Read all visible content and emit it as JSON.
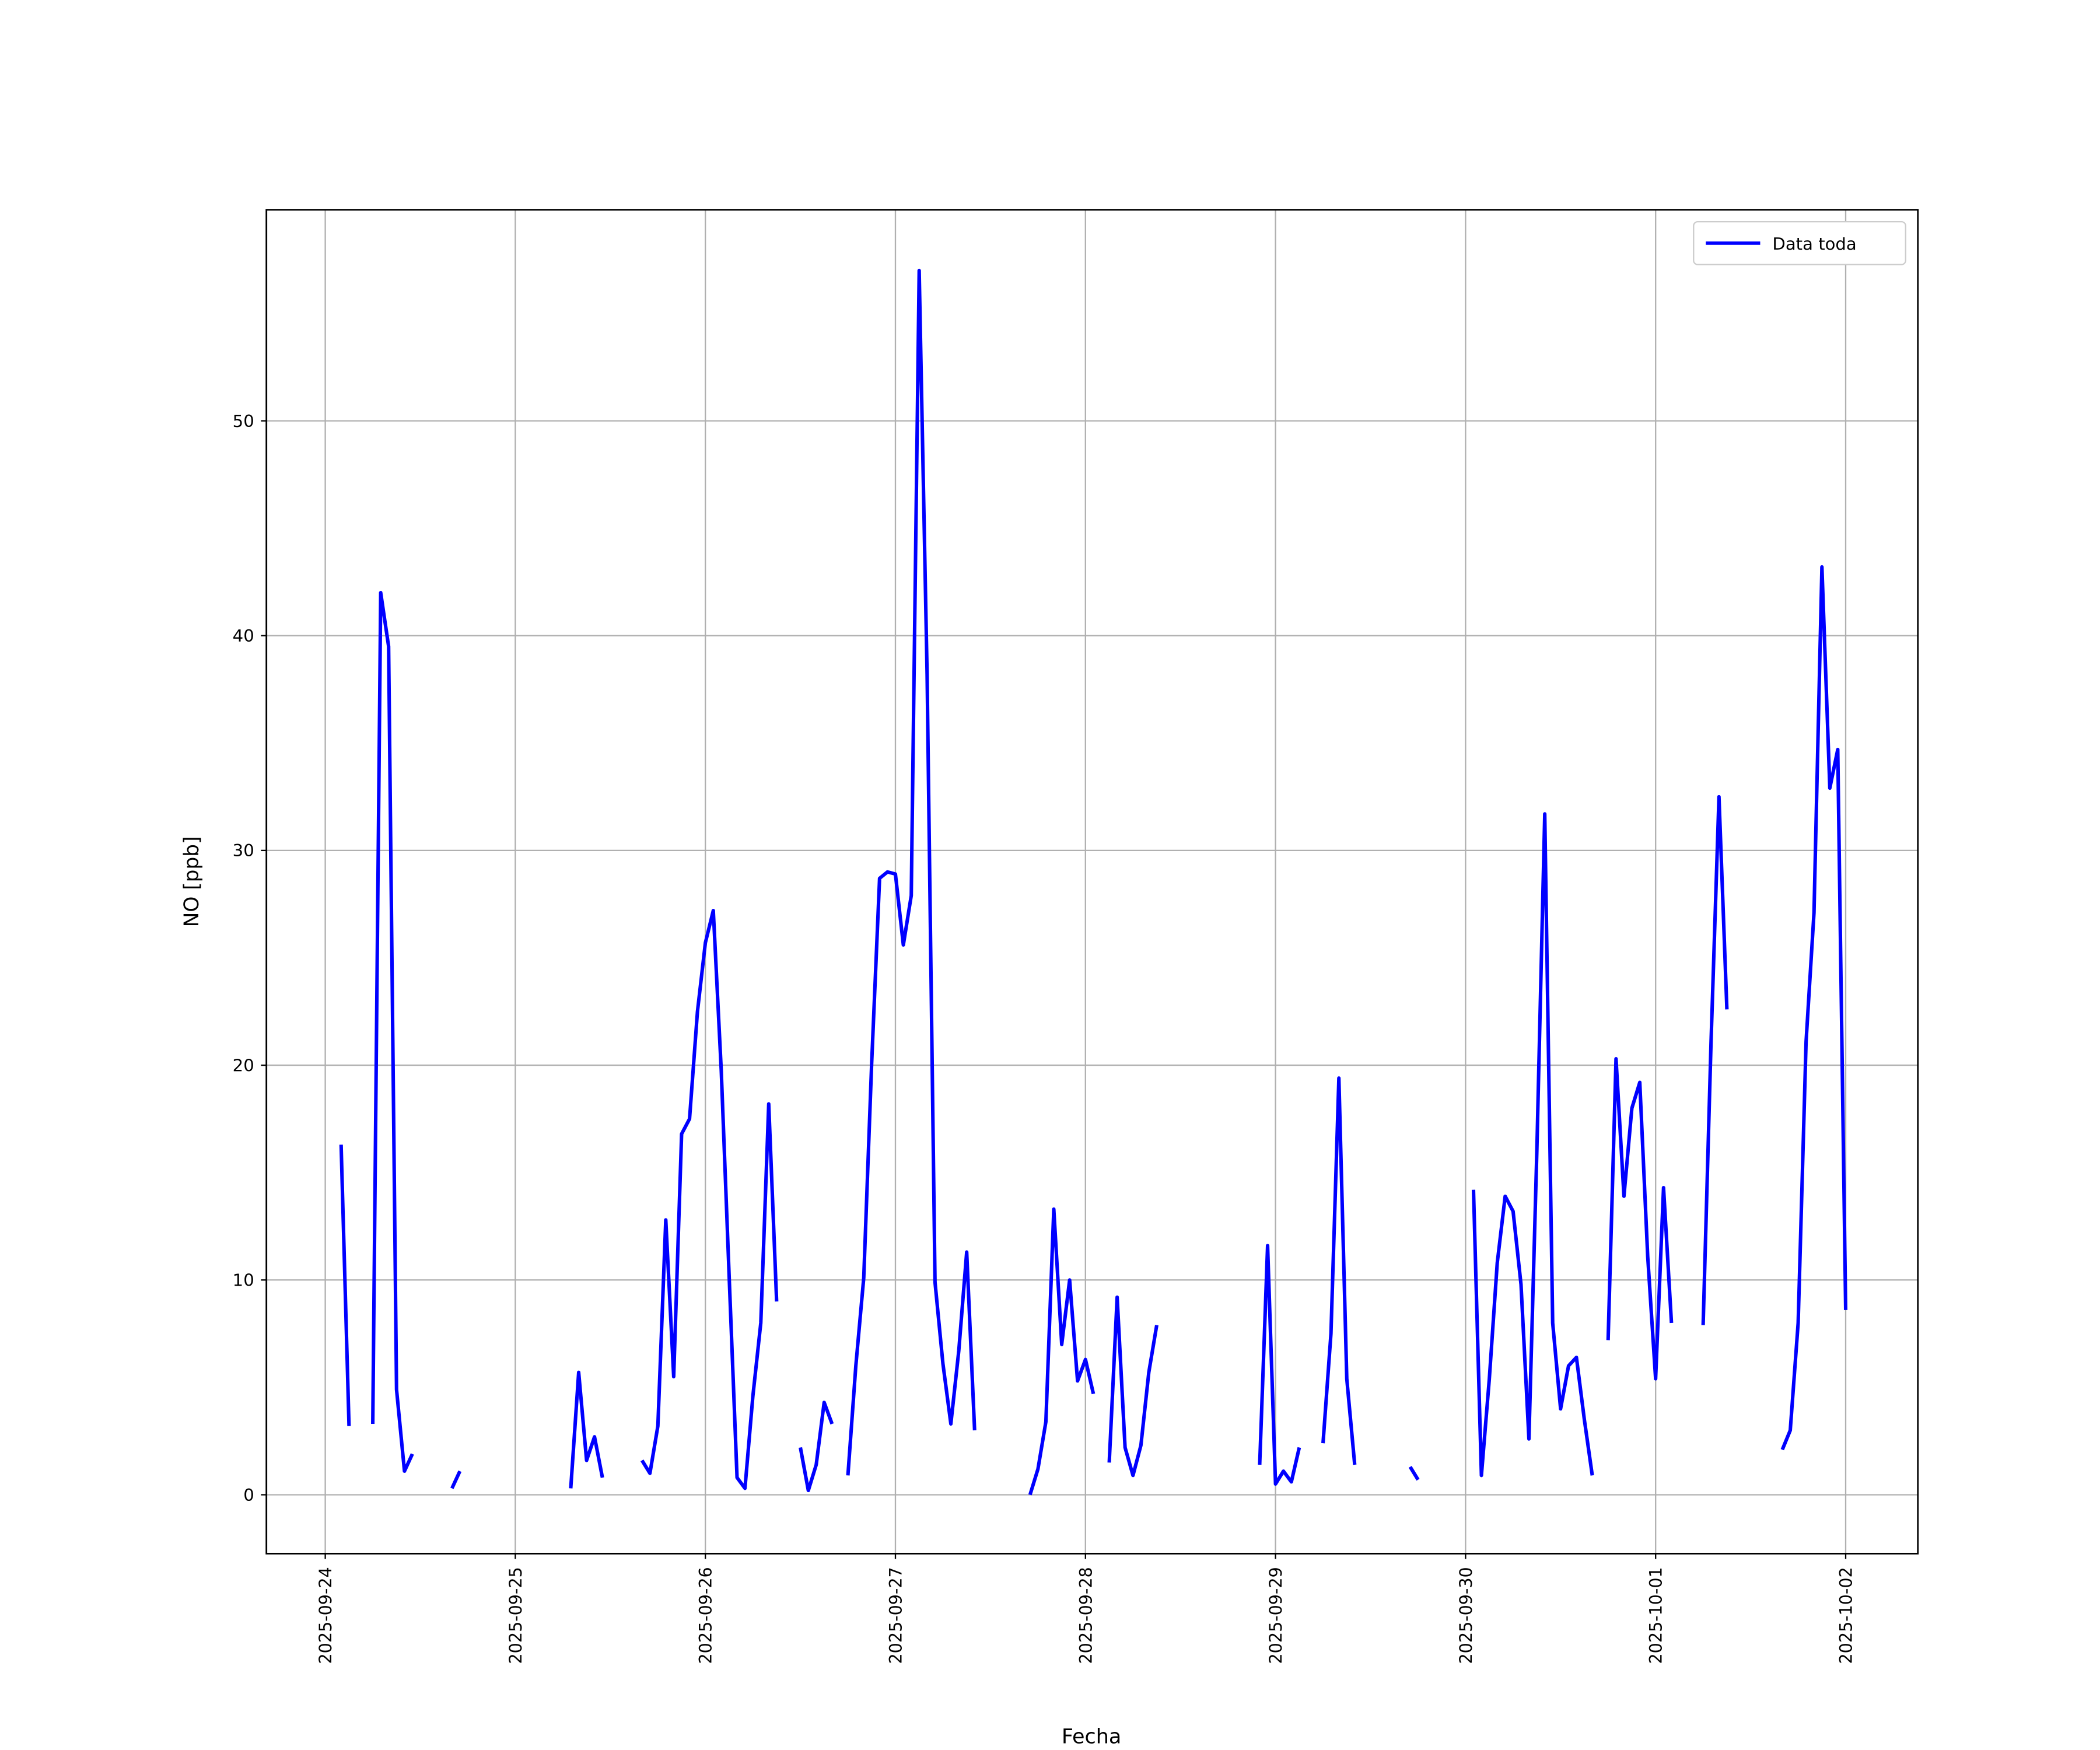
{
  "chart_data": {
    "type": "line",
    "xlabel": "Fecha",
    "ylabel": "NO [ppb]",
    "x": [
      "2025-09-24 02:00",
      "2025-09-24 03:00",
      "2025-09-24 04:00",
      "2025-09-24 06:00",
      "2025-09-24 07:00",
      "2025-09-24 08:00",
      "2025-09-24 09:00",
      "2025-09-24 10:00",
      "2025-09-24 11:00",
      "2025-09-24 12:00",
      "2025-09-24 16:00",
      "2025-09-24 17:00",
      "2025-09-24 18:00",
      "2025-09-25 07:00",
      "2025-09-25 08:00",
      "2025-09-25 09:00",
      "2025-09-25 10:00",
      "2025-09-25 11:00",
      "2025-09-25 12:00",
      "2025-09-25 16:00",
      "2025-09-25 17:00",
      "2025-09-25 18:00",
      "2025-09-25 19:00",
      "2025-09-25 20:00",
      "2025-09-25 21:00",
      "2025-09-25 22:00",
      "2025-09-25 23:00",
      "2025-09-26 00:00",
      "2025-09-26 01:00",
      "2025-09-26 02:00",
      "2025-09-26 03:00",
      "2025-09-26 04:00",
      "2025-09-26 05:00",
      "2025-09-26 06:00",
      "2025-09-26 07:00",
      "2025-09-26 08:00",
      "2025-09-26 09:00",
      "2025-09-26 10:00",
      "2025-09-26 12:00",
      "2025-09-26 13:00",
      "2025-09-26 14:00",
      "2025-09-26 15:00",
      "2025-09-26 16:00",
      "2025-09-26 17:00",
      "2025-09-26 18:00",
      "2025-09-26 19:00",
      "2025-09-26 20:00",
      "2025-09-26 21:00",
      "2025-09-26 22:00",
      "2025-09-26 23:00",
      "2025-09-27 00:00",
      "2025-09-27 01:00",
      "2025-09-27 02:00",
      "2025-09-27 03:00",
      "2025-09-27 04:00",
      "2025-09-27 05:00",
      "2025-09-27 06:00",
      "2025-09-27 07:00",
      "2025-09-27 08:00",
      "2025-09-27 09:00",
      "2025-09-27 10:00",
      "2025-09-27 11:00",
      "2025-09-27 17:00",
      "2025-09-27 18:00",
      "2025-09-27 19:00",
      "2025-09-27 20:00",
      "2025-09-27 21:00",
      "2025-09-27 22:00",
      "2025-09-27 23:00",
      "2025-09-28 00:00",
      "2025-09-28 01:00",
      "2025-09-28 02:00",
      "2025-09-28 03:00",
      "2025-09-28 04:00",
      "2025-09-28 05:00",
      "2025-09-28 06:00",
      "2025-09-28 07:00",
      "2025-09-28 08:00",
      "2025-09-28 09:00",
      "2025-09-28 10:00",
      "2025-09-28 22:00",
      "2025-09-28 23:00",
      "2025-09-29 00:00",
      "2025-09-29 01:00",
      "2025-09-29 02:00",
      "2025-09-29 03:00",
      "2025-09-29 04:00",
      "2025-09-29 06:00",
      "2025-09-29 07:00",
      "2025-09-29 08:00",
      "2025-09-29 09:00",
      "2025-09-29 10:00",
      "2025-09-29 11:00",
      "2025-09-29 17:00",
      "2025-09-29 18:00",
      "2025-09-29 19:00",
      "2025-09-30 01:00",
      "2025-09-30 02:00",
      "2025-09-30 03:00",
      "2025-09-30 04:00",
      "2025-09-30 05:00",
      "2025-09-30 06:00",
      "2025-09-30 07:00",
      "2025-09-30 08:00",
      "2025-09-30 09:00",
      "2025-09-30 10:00",
      "2025-09-30 11:00",
      "2025-09-30 12:00",
      "2025-09-30 13:00",
      "2025-09-30 14:00",
      "2025-09-30 15:00",
      "2025-09-30 16:00",
      "2025-09-30 17:00",
      "2025-09-30 18:00",
      "2025-09-30 19:00",
      "2025-09-30 20:00",
      "2025-09-30 21:00",
      "2025-09-30 22:00",
      "2025-09-30 23:00",
      "2025-10-01 00:00",
      "2025-10-01 01:00",
      "2025-10-01 02:00",
      "2025-10-01 03:00",
      "2025-10-01 06:00",
      "2025-10-01 07:00",
      "2025-10-01 08:00",
      "2025-10-01 09:00",
      "2025-10-01 10:00",
      "2025-10-01 16:00",
      "2025-10-01 17:00",
      "2025-10-01 18:00",
      "2025-10-01 19:00",
      "2025-10-01 20:00",
      "2025-10-01 21:00",
      "2025-10-01 22:00",
      "2025-10-01 23:00",
      "2025-10-02 00:00"
    ],
    "series": [
      {
        "name": "Data toda",
        "color": "#0000ff",
        "values": [
          16.3,
          3.2,
          null,
          3.3,
          42.0,
          39.5,
          4.9,
          1.1,
          1.9,
          null,
          0.3,
          1.1,
          null,
          0.3,
          5.7,
          1.6,
          2.7,
          0.8,
          null,
          1.6,
          1.0,
          3.2,
          12.8,
          5.5,
          16.8,
          17.5,
          22.5,
          25.7,
          27.2,
          19.8,
          10.2,
          0.8,
          0.3,
          4.6,
          8.0,
          18.2,
          9.0,
          null,
          2.2,
          0.2,
          1.4,
          4.3,
          3.3,
          null,
          0.9,
          6.0,
          10.1,
          20.1,
          28.7,
          29.0,
          28.9,
          25.6,
          27.9,
          57.0,
          38.2,
          9.9,
          6.1,
          3.3,
          6.7,
          11.3,
          3.0,
          null,
          0.0,
          1.2,
          3.4,
          13.3,
          7.0,
          10.0,
          5.3,
          6.3,
          4.7,
          null,
          1.5,
          9.2,
          2.2,
          0.9,
          2.3,
          5.7,
          7.9,
          null,
          1.4,
          11.6,
          0.5,
          1.1,
          0.6,
          2.2,
          null,
          2.4,
          7.5,
          19.4,
          5.4,
          1.4,
          null,
          1.3,
          0.7,
          null,
          14.2,
          0.9,
          5.4,
          10.8,
          13.9,
          13.2,
          9.8,
          2.6,
          16.0,
          31.7,
          8.0,
          4.0,
          6.0,
          6.4,
          3.5,
          0.9,
          null,
          7.2,
          20.3,
          13.9,
          18.0,
          19.2,
          11.1,
          5.4,
          14.3,
          8.0,
          null,
          7.9,
          21.1,
          32.5,
          22.6,
          null,
          2.1,
          3.0,
          8.0,
          21.1,
          27.1,
          43.2,
          32.9,
          34.7,
          8.6
        ]
      }
    ],
    "xlim": [
      "2025-09-23 16:34",
      "2025-10-02 09:07"
    ],
    "xticks": [
      "2025-09-24",
      "2025-09-25",
      "2025-09-26",
      "2025-09-27",
      "2025-09-28",
      "2025-09-29",
      "2025-09-30",
      "2025-10-01",
      "2025-10-02"
    ],
    "ylim": [
      -2.74,
      59.83
    ],
    "yticks": [
      0,
      10,
      20,
      30,
      40,
      50
    ],
    "grid": true,
    "legend": "upper right"
  }
}
